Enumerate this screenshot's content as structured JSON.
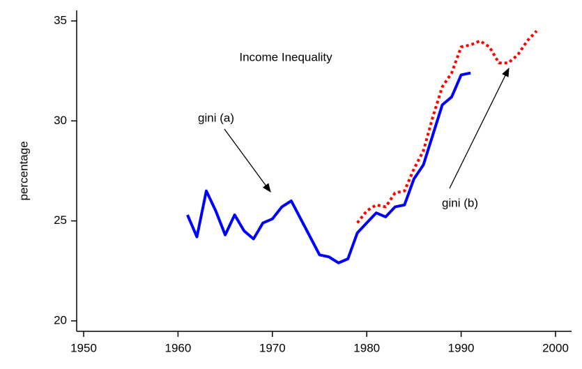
{
  "chart_data": {
    "type": "line",
    "title": "Income Inequality",
    "y_label": "percentage",
    "annotations": [
      "gini (a)",
      "gini (b)"
    ],
    "series": [
      {
        "name": "gini (a)",
        "color": "#0000ff",
        "dash": false,
        "x": [
          1961,
          1962,
          1963,
          1964,
          1965,
          1966,
          1967,
          1968,
          1969,
          1970,
          1971,
          1972,
          1973,
          1974,
          1975,
          1976,
          1977,
          1978,
          1979,
          1980,
          1981,
          1982,
          1983,
          1984,
          1985,
          1986,
          1987,
          1988,
          1989,
          1990,
          1991
        ],
        "values": [
          25.3,
          24.2,
          26.5,
          25.5,
          24.3,
          25.3,
          24.5,
          24.1,
          24.9,
          25.1,
          25.7,
          26.0,
          25.1,
          24.2,
          23.3,
          23.2,
          22.9,
          23.1,
          24.4,
          24.9,
          25.4,
          25.2,
          25.7,
          25.8,
          27.1,
          27.8,
          29.3,
          30.8,
          31.2,
          32.3,
          32.4
        ]
      },
      {
        "name": "gini (b)",
        "color": "#ff0000",
        "dash": true,
        "x": [
          1979,
          1980,
          1981,
          1982,
          1983,
          1984,
          1985,
          1986,
          1987,
          1988,
          1989,
          1990,
          1991,
          1992,
          1993,
          1994,
          1995,
          1996,
          1997,
          1998
        ],
        "values": [
          24.9,
          25.5,
          25.8,
          25.7,
          26.4,
          26.5,
          27.6,
          28.5,
          30.2,
          31.7,
          32.4,
          33.7,
          33.8,
          34.0,
          33.7,
          32.9,
          32.9,
          33.3,
          34.0,
          34.5
        ]
      }
    ],
    "xlim": [
      1950,
      2000
    ],
    "xticks": [
      1950,
      1960,
      1970,
      1980,
      1990,
      2000
    ],
    "ylim": [
      20,
      35
    ],
    "yticks": [
      20,
      25,
      30,
      35
    ]
  }
}
